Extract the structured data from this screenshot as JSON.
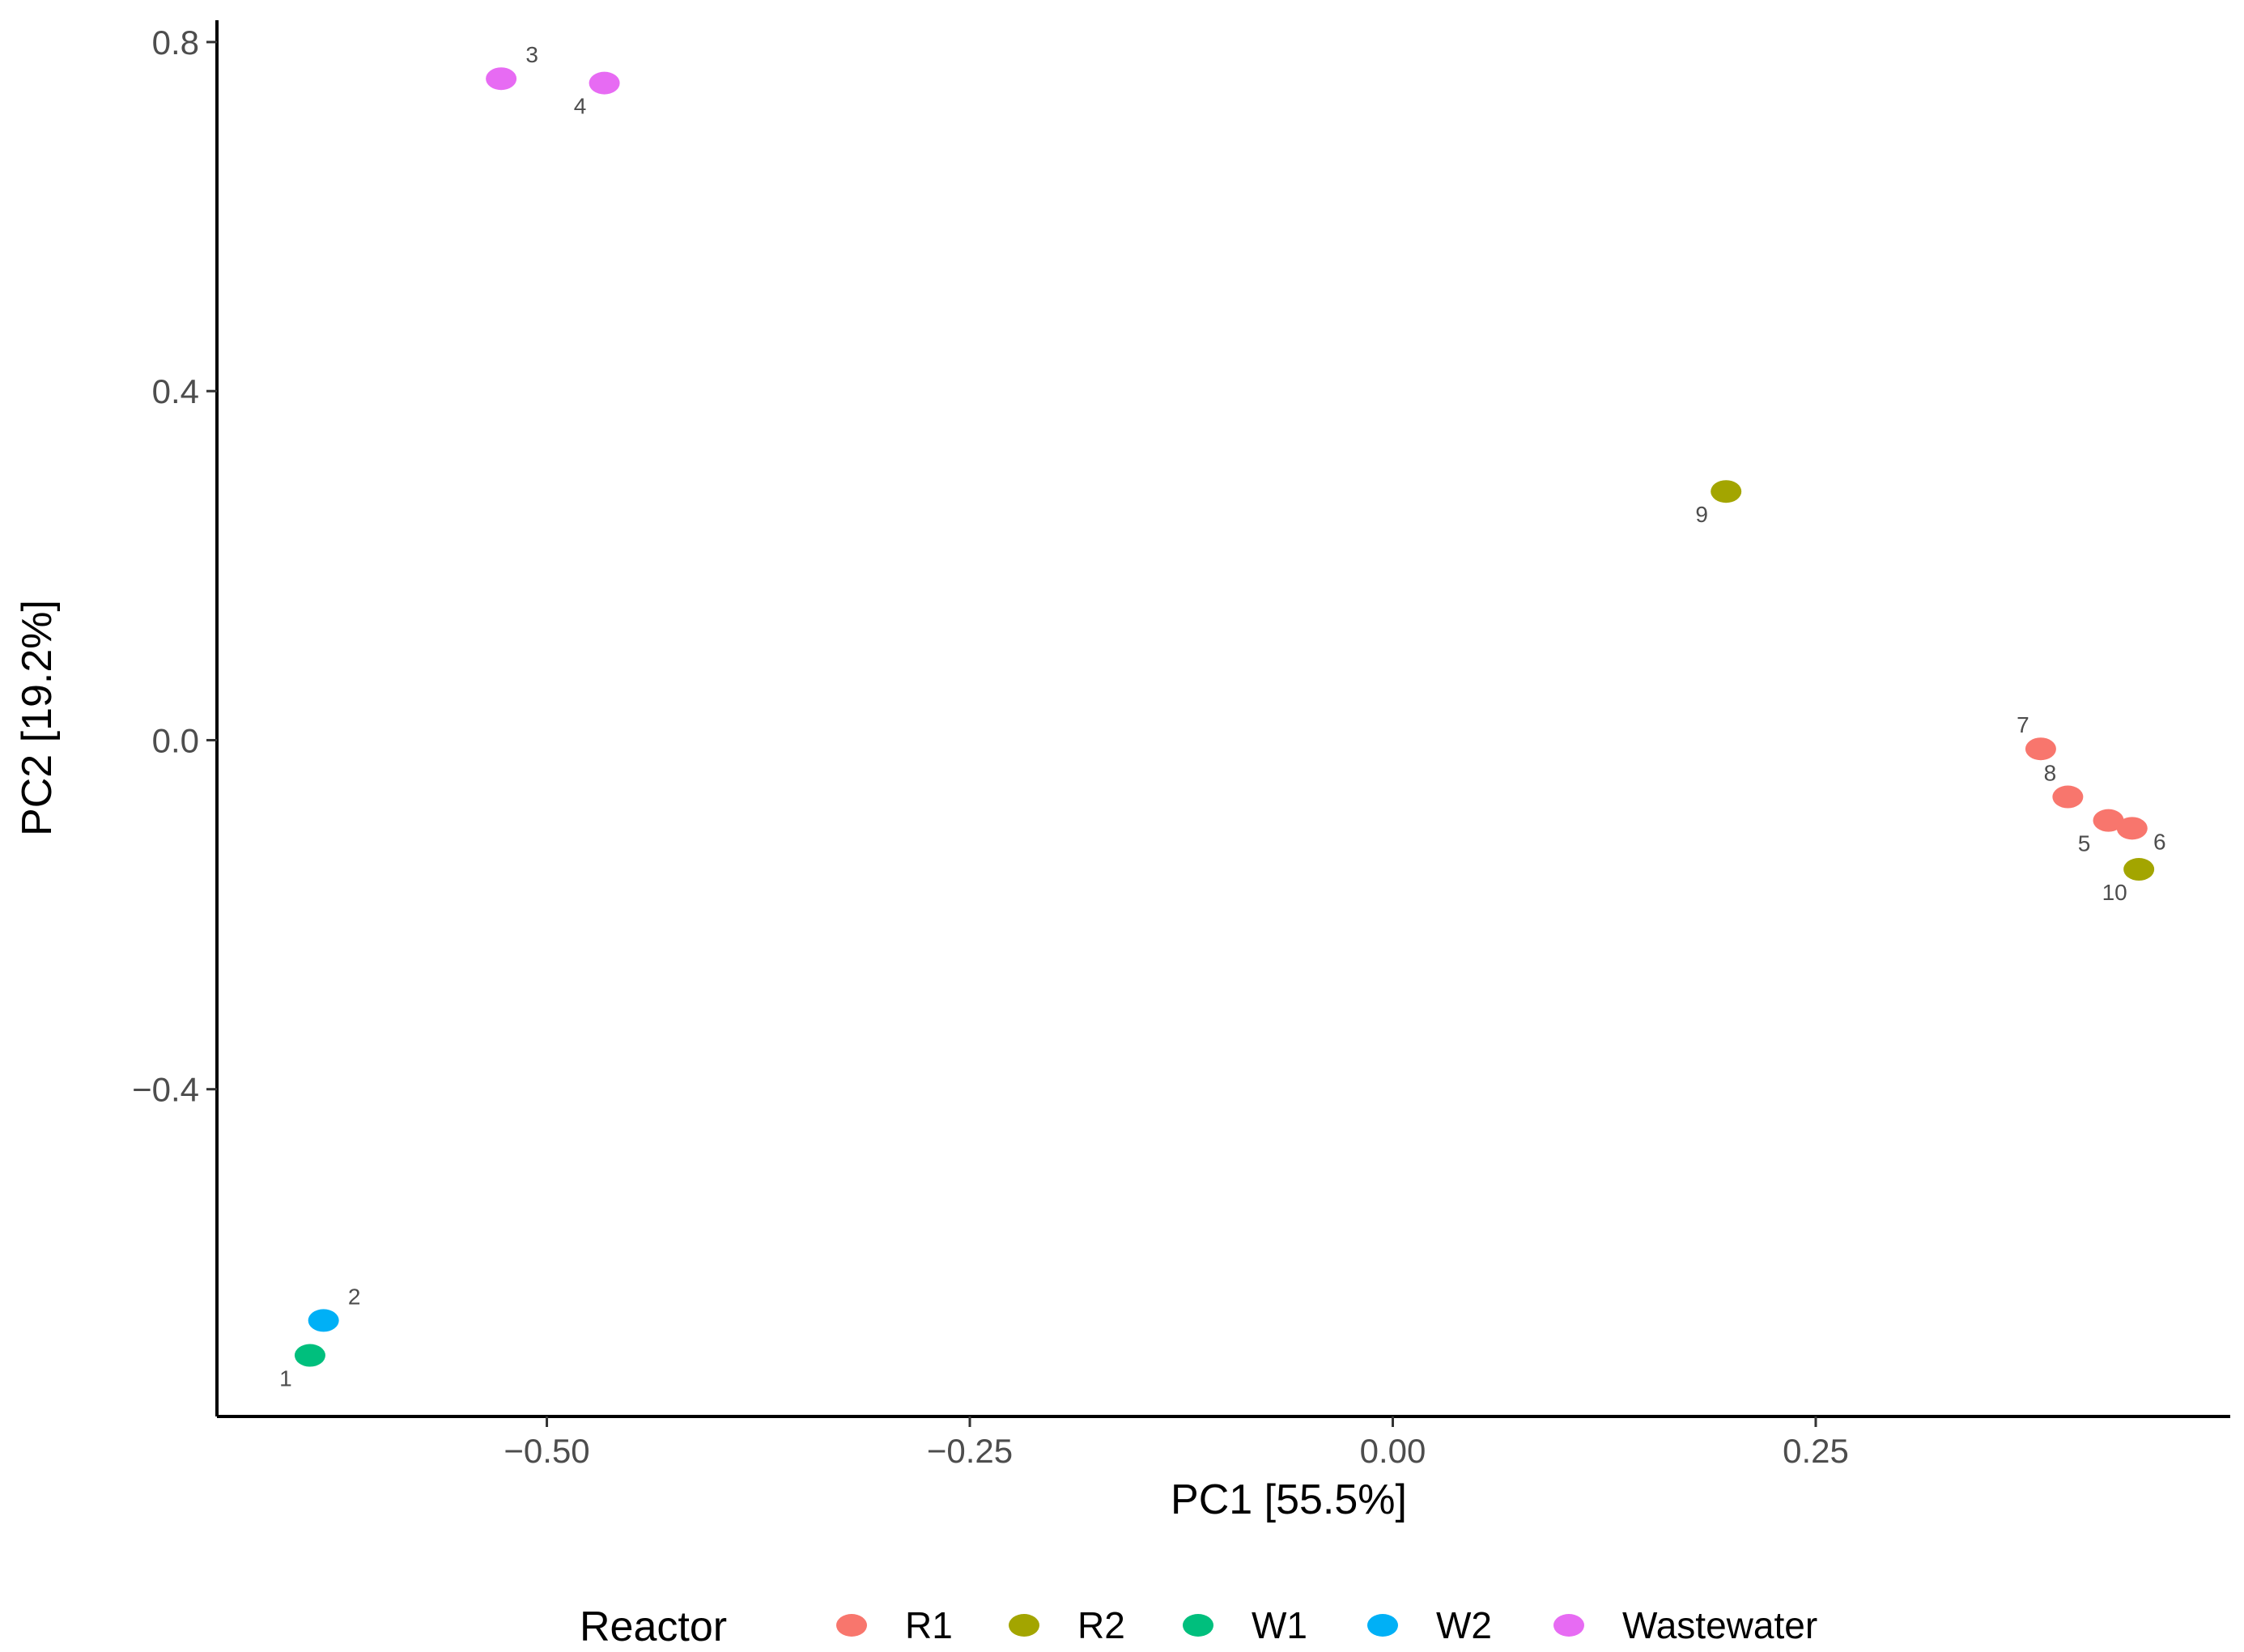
{
  "chart_data": {
    "type": "scatter",
    "title": "",
    "xlabel": "PC1 [55.5%]",
    "ylabel": "PC2 [19.2%]",
    "xlim": [
      -0.695,
      0.495
    ],
    "ylim": [
      -0.775,
      0.825
    ],
    "x_ticks": [
      {
        "value": -0.5,
        "label": "−0.50"
      },
      {
        "value": -0.25,
        "label": "−0.25"
      },
      {
        "value": 0.0,
        "label": "0.00"
      },
      {
        "value": 0.25,
        "label": "0.25"
      }
    ],
    "y_ticks": [
      {
        "value": 0.8,
        "label": "0.8"
      },
      {
        "value": 0.4,
        "label": "0.4"
      },
      {
        "value": 0.0,
        "label": "0.0"
      },
      {
        "value": -0.4,
        "label": "−0.4"
      }
    ],
    "grid": false,
    "legend": {
      "title": "Reactor",
      "position": "bottom",
      "entries": [
        {
          "name": "R1",
          "color": "#F8766D"
        },
        {
          "name": "R2",
          "color": "#A3A500"
        },
        {
          "name": "W1",
          "color": "#00BF7D"
        },
        {
          "name": "W2",
          "color": "#00B0F6"
        },
        {
          "name": "Wastewater",
          "color": "#E76BF3"
        }
      ]
    },
    "points": [
      {
        "label": "1",
        "group": "W1",
        "x": -0.64,
        "y": -0.705,
        "label_side": "below-left"
      },
      {
        "label": "2",
        "group": "W2",
        "x": -0.632,
        "y": -0.665,
        "label_side": "above-right"
      },
      {
        "label": "3",
        "group": "Wastewater",
        "x": -0.527,
        "y": 0.758,
        "label_side": "above-right"
      },
      {
        "label": "4",
        "group": "Wastewater",
        "x": -0.466,
        "y": 0.753,
        "label_side": "below-left"
      },
      {
        "label": "5",
        "group": "R1",
        "x": 0.423,
        "y": -0.092,
        "label_side": "below-left"
      },
      {
        "label": "6",
        "group": "R1",
        "x": 0.437,
        "y": -0.101,
        "label_side": "below-right"
      },
      {
        "label": "7",
        "group": "R1",
        "x": 0.383,
        "y": -0.01,
        "label_side": "above-left"
      },
      {
        "label": "8",
        "group": "R1",
        "x": 0.399,
        "y": -0.065,
        "label_side": "above-left"
      },
      {
        "label": "9",
        "group": "R2",
        "x": 0.197,
        "y": 0.285,
        "label_side": "below-left"
      },
      {
        "label": "10",
        "group": "R2",
        "x": 0.441,
        "y": -0.148,
        "label_side": "below-left"
      }
    ]
  }
}
